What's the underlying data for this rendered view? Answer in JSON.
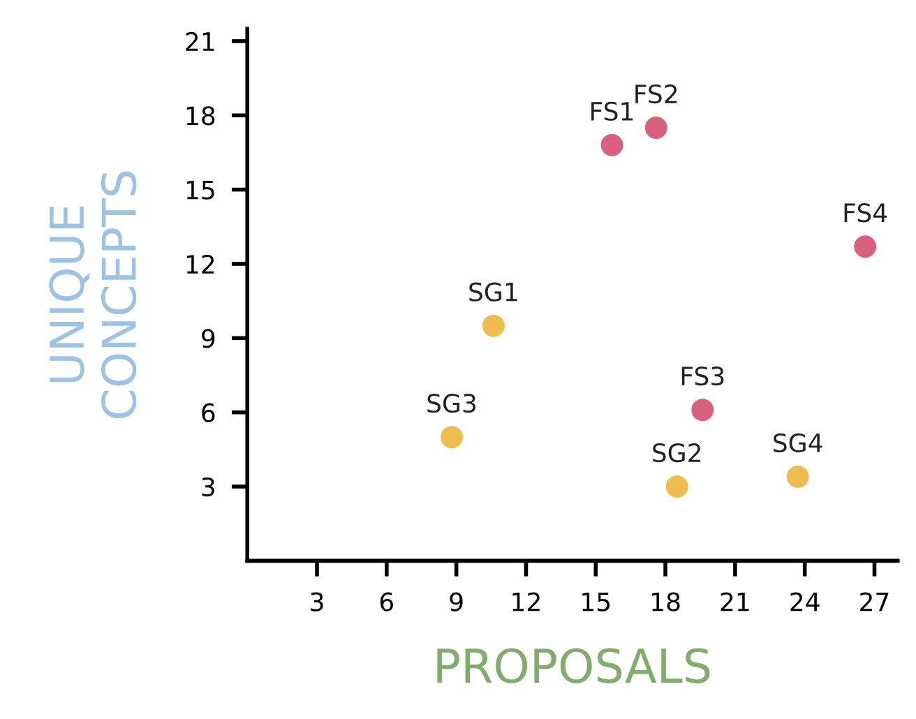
{
  "chart_data": {
    "type": "scatter",
    "xlabel": "PROPOSALS",
    "ylabel": "UNIQUE\nCONCEPTS",
    "series": [
      {
        "color": "#d9607f",
        "x": [
          15.7,
          17.6,
          19.6,
          26.6
        ],
        "values": [
          16.8,
          17.5,
          6.1,
          12.7
        ]
      },
      {
        "color": "#efbd4f",
        "x": [
          10.6,
          18.5,
          8.8,
          23.7
        ],
        "values": [
          9.5,
          3.0,
          5.0,
          3.4
        ]
      }
    ],
    "annotations": [
      {
        "text": "FS1",
        "x": 15.7,
        "y": 16.8
      },
      {
        "text": "FS2",
        "x": 17.6,
        "y": 17.5
      },
      {
        "text": "FS3",
        "x": 19.6,
        "y": 6.1
      },
      {
        "text": "FS4",
        "x": 26.6,
        "y": 12.7
      },
      {
        "text": "SG1",
        "x": 10.6,
        "y": 9.5
      },
      {
        "text": "SG2",
        "x": 18.5,
        "y": 3.0
      },
      {
        "text": "SG3",
        "x": 8.8,
        "y": 5.0
      },
      {
        "text": "SG4",
        "x": 23.7,
        "y": 3.4
      }
    ],
    "xlim": [
      0,
      28
    ],
    "ylim": [
      0,
      21.5
    ],
    "xticks": [
      3,
      6,
      9,
      12,
      15,
      18,
      21,
      24,
      27
    ],
    "yticks": [
      3,
      6,
      9,
      12,
      15,
      18,
      21
    ],
    "grid": false,
    "legend": false,
    "marker": "circle"
  }
}
